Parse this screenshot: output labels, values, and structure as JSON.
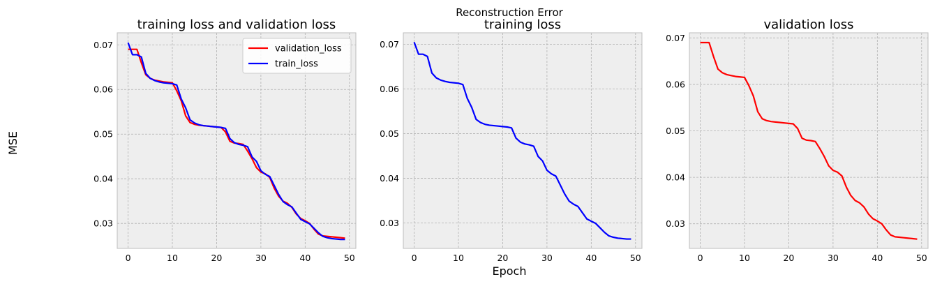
{
  "figure": {
    "suptitle": "Reconstruction Error",
    "ylabel": "MSE",
    "xlabel": "Epoch"
  },
  "colors": {
    "validation": "#ff0000",
    "train": "#0000ff",
    "plot_bg": "#eeeeee",
    "grid": "#b0b0b0"
  },
  "chart_data": [
    {
      "type": "line",
      "title": "training loss and validation loss",
      "xlim": [
        -2.45,
        51.45
      ],
      "ylim": [
        0.0244,
        0.0727
      ],
      "xticks": [
        0,
        10,
        20,
        30,
        40,
        50
      ],
      "yticks": [
        0.03,
        0.04,
        0.05,
        0.06,
        0.07
      ],
      "ytick_labels": [
        "0.03",
        "0.04",
        "0.05",
        "0.06",
        "0.07"
      ],
      "grid": true,
      "legend": "top-right",
      "series": [
        {
          "name": "validation_loss",
          "color": "#ff0000",
          "values": [
            0.069,
            0.069,
            0.069,
            0.066,
            0.0633,
            0.0625,
            0.0621,
            0.0619,
            0.0617,
            0.0616,
            0.0615,
            0.0597,
            0.0575,
            0.0541,
            0.0526,
            0.0522,
            0.052,
            0.0519,
            0.0518,
            0.0517,
            0.0516,
            0.0515,
            0.0505,
            0.0484,
            0.048,
            0.0479,
            0.0477,
            0.0462,
            0.0445,
            0.0425,
            0.0415,
            0.0411,
            0.0403,
            0.0379,
            0.0361,
            0.035,
            0.0345,
            0.0336,
            0.0321,
            0.0311,
            0.0306,
            0.03,
            0.0287,
            0.0276,
            0.0272,
            0.0271,
            0.027,
            0.0269,
            0.0268,
            0.0267
          ]
        },
        {
          "name": "train_loss",
          "color": "#0000ff",
          "values": [
            0.0705,
            0.0678,
            0.0678,
            0.0673,
            0.0636,
            0.0625,
            0.062,
            0.0617,
            0.0615,
            0.0614,
            0.0613,
            0.061,
            0.0579,
            0.0559,
            0.0532,
            0.0525,
            0.0521,
            0.0519,
            0.0518,
            0.0517,
            0.0516,
            0.0515,
            0.0513,
            0.049,
            0.0481,
            0.0477,
            0.0475,
            0.0472,
            0.0449,
            0.0439,
            0.0418,
            0.041,
            0.0405,
            0.0385,
            0.0365,
            0.0349,
            0.0342,
            0.0337,
            0.0323,
            0.0309,
            0.0304,
            0.0299,
            0.0289,
            0.0279,
            0.0271,
            0.0268,
            0.0266,
            0.0265,
            0.0264,
            0.0264
          ]
        }
      ]
    },
    {
      "type": "line",
      "title": "training loss",
      "xlim": [
        -2.45,
        51.45
      ],
      "ylim": [
        0.0243,
        0.0726
      ],
      "xticks": [
        0,
        10,
        20,
        30,
        40,
        50
      ],
      "yticks": [
        0.03,
        0.04,
        0.05,
        0.06,
        0.07
      ],
      "ytick_labels": [
        "0.03",
        "0.04",
        "0.05",
        "0.06",
        "0.07"
      ],
      "grid": true,
      "series": [
        {
          "color": "#0000ff",
          "values": [
            0.0705,
            0.0678,
            0.0678,
            0.0673,
            0.0636,
            0.0625,
            0.062,
            0.0617,
            0.0615,
            0.0614,
            0.0613,
            0.061,
            0.0579,
            0.0559,
            0.0532,
            0.0525,
            0.0521,
            0.0519,
            0.0518,
            0.0517,
            0.0516,
            0.0515,
            0.0513,
            0.049,
            0.0481,
            0.0477,
            0.0475,
            0.0472,
            0.0449,
            0.0439,
            0.0418,
            0.041,
            0.0405,
            0.0385,
            0.0365,
            0.0349,
            0.0342,
            0.0337,
            0.0323,
            0.0309,
            0.0304,
            0.0299,
            0.0289,
            0.0279,
            0.0271,
            0.0268,
            0.0266,
            0.0265,
            0.0264,
            0.0264
          ]
        }
      ]
    },
    {
      "type": "line",
      "title": "validation loss",
      "xlim": [
        -2.45,
        51.45
      ],
      "ylim": [
        0.0247,
        0.0711
      ],
      "xticks": [
        0,
        10,
        20,
        30,
        40,
        50
      ],
      "yticks": [
        0.03,
        0.04,
        0.05,
        0.06,
        0.07
      ],
      "ytick_labels": [
        "0.03",
        "0.04",
        "0.05",
        "0.06",
        "0.07"
      ],
      "grid": true,
      "series": [
        {
          "color": "#ff0000",
          "values": [
            0.069,
            0.069,
            0.069,
            0.066,
            0.0633,
            0.0625,
            0.0621,
            0.0619,
            0.0617,
            0.0616,
            0.0615,
            0.0597,
            0.0575,
            0.0541,
            0.0526,
            0.0522,
            0.052,
            0.0519,
            0.0518,
            0.0517,
            0.0516,
            0.0515,
            0.0505,
            0.0484,
            0.048,
            0.0479,
            0.0477,
            0.0462,
            0.0445,
            0.0425,
            0.0415,
            0.0411,
            0.0403,
            0.0379,
            0.0361,
            0.035,
            0.0345,
            0.0336,
            0.0321,
            0.0311,
            0.0306,
            0.03,
            0.0287,
            0.0276,
            0.0272,
            0.0271,
            0.027,
            0.0269,
            0.0268,
            0.0267
          ]
        }
      ]
    }
  ]
}
